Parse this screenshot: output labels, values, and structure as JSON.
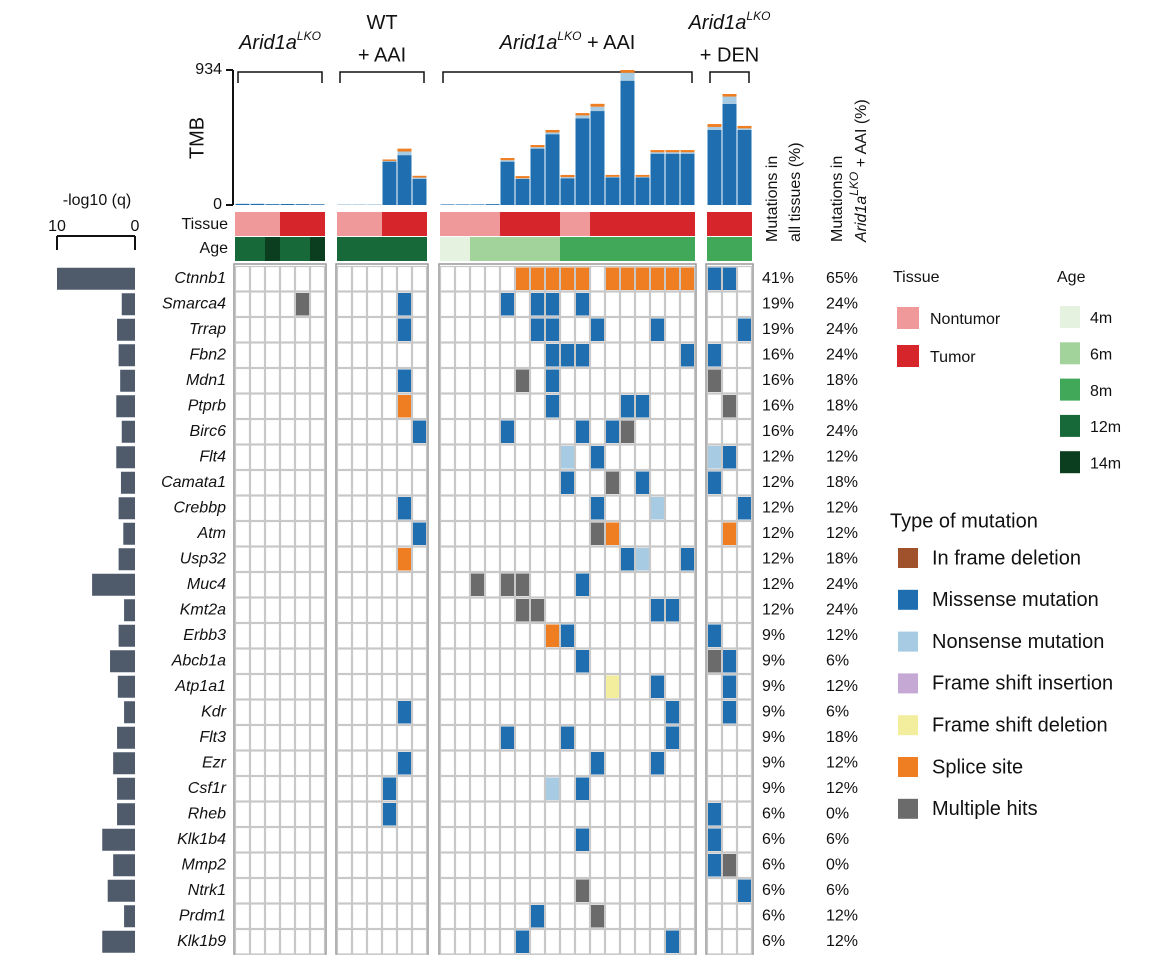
{
  "chart_data": {
    "type": "oncoprint",
    "tmb_axis_label": "TMB",
    "ylim": [
      0,
      934
    ],
    "yticks": [
      0,
      934
    ],
    "tmb_colors": [
      "#1f6fb0",
      "#a6cbe3",
      "#ef7e22"
    ],
    "track_labels": {
      "tissue": "Tissue",
      "age": "Age"
    },
    "groups": [
      {
        "label": {
          "gene": "Arid1a",
          "sup": "LKO"
        },
        "tissue": [
          0,
          0,
          0,
          1,
          1,
          1
        ],
        "age": [
          3,
          3,
          4,
          3,
          3,
          4
        ],
        "tmb": [
          [
            8,
            8,
            6,
            7,
            6,
            5
          ],
          [
            0,
            0,
            0,
            0,
            0,
            0
          ],
          [
            0,
            0,
            0,
            0,
            0,
            0
          ]
        ]
      },
      {
        "label": {
          "line1": "WT",
          "line2": "+ AAI"
        },
        "tissue": [
          0,
          0,
          0,
          1,
          1,
          1
        ],
        "age": [
          3,
          3,
          3,
          3,
          3,
          3
        ],
        "tmb": [
          [
            2,
            2,
            2,
            300,
            345,
            180
          ],
          [
            0,
            0,
            0,
            5,
            25,
            10
          ],
          [
            0,
            0,
            0,
            10,
            20,
            12
          ]
        ]
      },
      {
        "label": {
          "gene": "Arid1a",
          "sup": "LKO",
          "suffix": " + AAI"
        },
        "tissue": [
          0,
          0,
          0,
          0,
          1,
          1,
          1,
          1,
          0,
          0,
          1,
          1,
          1,
          1,
          1,
          1,
          1
        ],
        "age": [
          0,
          0,
          1,
          1,
          1,
          1,
          1,
          1,
          2,
          2,
          2,
          2,
          2,
          2,
          2,
          2,
          2
        ],
        "tmb": [
          [
            4,
            4,
            4,
            6,
            300,
            180,
            390,
            490,
            185,
            600,
            650,
            190,
            860,
            190,
            355,
            355,
            355
          ],
          [
            0,
            0,
            0,
            0,
            10,
            5,
            10,
            12,
            8,
            20,
            30,
            5,
            55,
            5,
            10,
            10,
            10
          ],
          [
            0,
            0,
            0,
            0,
            15,
            15,
            15,
            17,
            15,
            16,
            20,
            13,
            19,
            13,
            15,
            15,
            15
          ]
        ]
      },
      {
        "label": {
          "gene": "Arid1a",
          "sup": "LKO",
          "line2": "+ DEN"
        },
        "tissue": [
          1,
          1,
          1
        ],
        "age": [
          2,
          2,
          2
        ],
        "tmb": [
          [
            520,
            700,
            520
          ],
          [
            20,
            50,
            10
          ],
          [
            20,
            18,
            17
          ]
        ]
      }
    ],
    "tissue_legend": {
      "title": "Tissue",
      "items": [
        {
          "name": "Nontumor",
          "color": "#f0999a"
        },
        {
          "name": "Tumor",
          "color": "#d7262b"
        }
      ]
    },
    "age_legend": {
      "title": "Age",
      "items": [
        {
          "name": "4m",
          "color": "#e5f2df"
        },
        {
          "name": "6m",
          "color": "#a2d39b"
        },
        {
          "name": "8m",
          "color": "#41a85a"
        },
        {
          "name": "12m",
          "color": "#17693a"
        },
        {
          "name": "14m",
          "color": "#0b3d1f"
        }
      ]
    },
    "mutation_legend": {
      "title": "Type of mutation",
      "items": [
        {
          "name": "In frame deletion",
          "color": "#a0522d"
        },
        {
          "name": "Missense mutation",
          "color": "#1f6fb0"
        },
        {
          "name": "Nonsense mutation",
          "color": "#a6cbe3"
        },
        {
          "name": "Frame shift insertion",
          "color": "#c6a8d4"
        },
        {
          "name": "Frame shift deletion",
          "color": "#f2ee9e"
        },
        {
          "name": "Splice site",
          "color": "#ef7e22"
        },
        {
          "name": "Multiple hits",
          "color": "#6b6b6b"
        }
      ]
    },
    "q_axis": {
      "label": "-log10 (q)",
      "xlim": [
        10,
        0
      ],
      "xticks": [
        10,
        0
      ],
      "color": "#4f5b6b"
    },
    "pct_headers": [
      {
        "line1": "Mutations in",
        "line2": "all tissues (%)"
      },
      {
        "line1": "Mutations in",
        "gene": "Arid1a",
        "sup": "LKO",
        "suffix": " + AAI (%)"
      }
    ],
    "genes": [
      {
        "name": "Ctnnb1",
        "q": 10.0,
        "pct_all": "41%",
        "pct_aai": "65%",
        "hits": [
          [
            17,
            5
          ],
          [
            18,
            5
          ],
          [
            19,
            5
          ],
          [
            20,
            5
          ],
          [
            21,
            5
          ],
          [
            23,
            5
          ],
          [
            24,
            5
          ],
          [
            25,
            5
          ],
          [
            26,
            5
          ],
          [
            27,
            5
          ],
          [
            28,
            5
          ],
          [
            29,
            1
          ],
          [
            30,
            1
          ]
        ]
      },
      {
        "name": "Smarca4",
        "q": 1.7,
        "pct_all": "19%",
        "pct_aai": "24%",
        "hits": [
          [
            4,
            6
          ],
          [
            10,
            1
          ],
          [
            16,
            1
          ],
          [
            18,
            1
          ],
          [
            19,
            1
          ],
          [
            21,
            1
          ]
        ]
      },
      {
        "name": "Trrap",
        "q": 2.3,
        "pct_all": "19%",
        "pct_aai": "24%",
        "hits": [
          [
            10,
            1
          ],
          [
            18,
            1
          ],
          [
            19,
            1
          ],
          [
            22,
            1
          ],
          [
            26,
            1
          ],
          [
            31,
            1
          ]
        ]
      },
      {
        "name": "Fbn2",
        "q": 2.1,
        "pct_all": "16%",
        "pct_aai": "24%",
        "hits": [
          [
            19,
            1
          ],
          [
            20,
            1
          ],
          [
            21,
            1
          ],
          [
            28,
            1
          ],
          [
            29,
            1
          ]
        ]
      },
      {
        "name": "Mdn1",
        "q": 1.9,
        "pct_all": "16%",
        "pct_aai": "18%",
        "hits": [
          [
            10,
            1
          ],
          [
            17,
            6
          ],
          [
            19,
            1
          ],
          [
            29,
            6
          ]
        ]
      },
      {
        "name": "Ptprb",
        "q": 2.4,
        "pct_all": "16%",
        "pct_aai": "18%",
        "hits": [
          [
            10,
            5
          ],
          [
            19,
            1
          ],
          [
            24,
            1
          ],
          [
            25,
            1
          ],
          [
            30,
            6
          ]
        ]
      },
      {
        "name": "Birc6",
        "q": 1.7,
        "pct_all": "16%",
        "pct_aai": "24%",
        "hits": [
          [
            11,
            1
          ],
          [
            16,
            1
          ],
          [
            21,
            1
          ],
          [
            23,
            1
          ],
          [
            24,
            6
          ]
        ]
      },
      {
        "name": "Flt4",
        "q": 2.4,
        "pct_all": "12%",
        "pct_aai": "12%",
        "hits": [
          [
            20,
            2
          ],
          [
            22,
            1
          ],
          [
            29,
            2
          ],
          [
            30,
            1
          ]
        ]
      },
      {
        "name": "Camata1",
        "q": 1.8,
        "pct_all": "12%",
        "pct_aai": "18%",
        "hits": [
          [
            20,
            1
          ],
          [
            23,
            6
          ],
          [
            25,
            1
          ],
          [
            29,
            1
          ]
        ]
      },
      {
        "name": "Crebbp",
        "q": 2.1,
        "pct_all": "12%",
        "pct_aai": "12%",
        "hits": [
          [
            10,
            1
          ],
          [
            22,
            1
          ],
          [
            26,
            2
          ],
          [
            31,
            1
          ]
        ]
      },
      {
        "name": "Atm",
        "q": 1.5,
        "pct_all": "12%",
        "pct_aai": "12%",
        "hits": [
          [
            11,
            1
          ],
          [
            22,
            6
          ],
          [
            23,
            5
          ],
          [
            30,
            5
          ]
        ]
      },
      {
        "name": "Usp32",
        "q": 2.1,
        "pct_all": "12%",
        "pct_aai": "18%",
        "hits": [
          [
            10,
            5
          ],
          [
            24,
            1
          ],
          [
            25,
            2
          ],
          [
            28,
            1
          ]
        ]
      },
      {
        "name": "Muc4",
        "q": 5.5,
        "pct_all": "12%",
        "pct_aai": "24%",
        "hits": [
          [
            14,
            6
          ],
          [
            16,
            6
          ],
          [
            17,
            6
          ],
          [
            21,
            1
          ]
        ]
      },
      {
        "name": "Kmt2a",
        "q": 1.4,
        "pct_all": "12%",
        "pct_aai": "24%",
        "hits": [
          [
            17,
            6
          ],
          [
            18,
            6
          ],
          [
            26,
            1
          ],
          [
            27,
            1
          ]
        ]
      },
      {
        "name": "Erbb3",
        "q": 2.1,
        "pct_all": "9%",
        "pct_aai": "12%",
        "hits": [
          [
            19,
            5
          ],
          [
            20,
            1
          ],
          [
            29,
            1
          ]
        ]
      },
      {
        "name": "Abcb1a",
        "q": 3.2,
        "pct_all": "9%",
        "pct_aai": "6%",
        "hits": [
          [
            21,
            1
          ],
          [
            29,
            6
          ],
          [
            30,
            1
          ]
        ]
      },
      {
        "name": "Atp1a1",
        "q": 2.2,
        "pct_all": "9%",
        "pct_aai": "12%",
        "hits": [
          [
            23,
            4
          ],
          [
            26,
            1
          ],
          [
            30,
            1
          ]
        ]
      },
      {
        "name": "Kdr",
        "q": 1.4,
        "pct_all": "9%",
        "pct_aai": "6%",
        "hits": [
          [
            10,
            1
          ],
          [
            27,
            1
          ],
          [
            30,
            1
          ]
        ]
      },
      {
        "name": "Flt3",
        "q": 2.3,
        "pct_all": "9%",
        "pct_aai": "18%",
        "hits": [
          [
            16,
            1
          ],
          [
            20,
            1
          ],
          [
            27,
            1
          ]
        ]
      },
      {
        "name": "Ezr",
        "q": 2.8,
        "pct_all": "9%",
        "pct_aai": "12%",
        "hits": [
          [
            10,
            1
          ],
          [
            22,
            1
          ],
          [
            26,
            1
          ]
        ]
      },
      {
        "name": "Csf1r",
        "q": 2.3,
        "pct_all": "9%",
        "pct_aai": "12%",
        "hits": [
          [
            9,
            1
          ],
          [
            19,
            2
          ],
          [
            21,
            1
          ]
        ]
      },
      {
        "name": "Rheb",
        "q": 2.3,
        "pct_all": "6%",
        "pct_aai": "0%",
        "hits": [
          [
            9,
            1
          ],
          [
            29,
            1
          ]
        ]
      },
      {
        "name": "Klk1b4",
        "q": 4.2,
        "pct_all": "6%",
        "pct_aai": "6%",
        "hits": [
          [
            21,
            1
          ],
          [
            29,
            1
          ]
        ]
      },
      {
        "name": "Mmp2",
        "q": 2.8,
        "pct_all": "6%",
        "pct_aai": "0%",
        "hits": [
          [
            29,
            1
          ],
          [
            30,
            6
          ]
        ]
      },
      {
        "name": "Ntrk1",
        "q": 3.5,
        "pct_all": "6%",
        "pct_aai": "6%",
        "hits": [
          [
            21,
            6
          ],
          [
            31,
            1
          ]
        ]
      },
      {
        "name": "Prdm1",
        "q": 1.4,
        "pct_all": "6%",
        "pct_aai": "12%",
        "hits": [
          [
            18,
            1
          ],
          [
            22,
            6
          ]
        ]
      },
      {
        "name": "Klk1b9",
        "q": 4.2,
        "pct_all": "6%",
        "pct_aai": "12%",
        "hits": [
          [
            17,
            1
          ],
          [
            27,
            1
          ]
        ]
      }
    ]
  }
}
